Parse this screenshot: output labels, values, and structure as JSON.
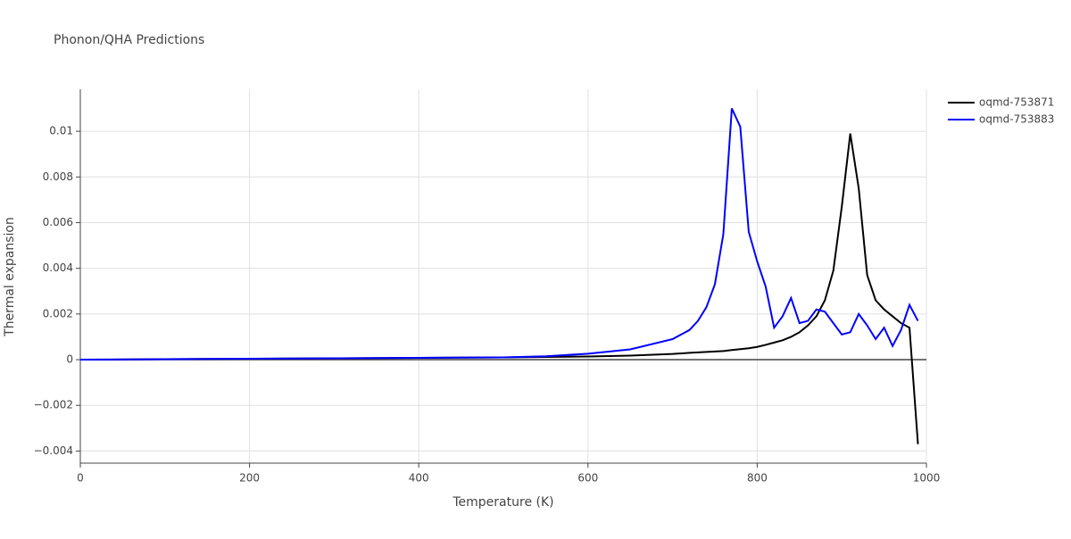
{
  "chart_data": {
    "type": "line",
    "title": "Phonon/QHA Predictions",
    "x_label": "Temperature (K)",
    "y_label": "Thermal expansion",
    "x": [
      0,
      100,
      200,
      300,
      400,
      500,
      550,
      600,
      650,
      700,
      720,
      730,
      740,
      750,
      760,
      770,
      780,
      790,
      800,
      810,
      820,
      830,
      840,
      850,
      860,
      870,
      880,
      890,
      900,
      910,
      920,
      930,
      940,
      950,
      960,
      970,
      980,
      990
    ],
    "series": [
      {
        "name": "oqmd-753871",
        "color": "#000000",
        "values": [
          0,
          2e-05,
          4e-05,
          6e-05,
          8e-05,
          0.0001,
          0.00012,
          0.00014,
          0.00018,
          0.00025,
          0.0003,
          0.00032,
          0.00034,
          0.00036,
          0.00038,
          0.00042,
          0.00046,
          0.0005,
          0.00056,
          0.00065,
          0.00075,
          0.00085,
          0.001,
          0.0012,
          0.0015,
          0.0019,
          0.0026,
          0.0039,
          0.0067,
          0.0099,
          0.0075,
          0.0037,
          0.0026,
          0.0022,
          0.0019,
          0.0016,
          0.0014,
          -0.0037
        ]
      },
      {
        "name": "oqmd-753883",
        "color": "#0000ff",
        "values": [
          0,
          2e-05,
          4e-05,
          6e-05,
          8e-05,
          0.0001,
          0.00015,
          0.00026,
          0.00045,
          0.0009,
          0.0013,
          0.0017,
          0.0023,
          0.0033,
          0.0055,
          0.011,
          0.0102,
          0.0056,
          0.0043,
          0.0032,
          0.0014,
          0.0019,
          0.0027,
          0.0016,
          0.0017,
          0.0022,
          0.0021,
          0.0016,
          0.0011,
          0.0012,
          0.002,
          0.0015,
          0.0009,
          0.0014,
          0.0006,
          0.0013,
          0.0024,
          0.0017
        ]
      }
    ],
    "xlim": [
      0,
      1000
    ],
    "xticks": [
      0,
      200,
      400,
      600,
      800,
      1000
    ],
    "ylim": [
      -0.00453,
      0.01184
    ],
    "yticks": [
      {
        "value": -0.004,
        "label": "−0.004"
      },
      {
        "value": -0.002,
        "label": "−0.002"
      },
      0,
      0.002,
      0.004,
      0.006,
      0.008,
      0.01
    ],
    "grid": true,
    "legend": "top-right"
  }
}
